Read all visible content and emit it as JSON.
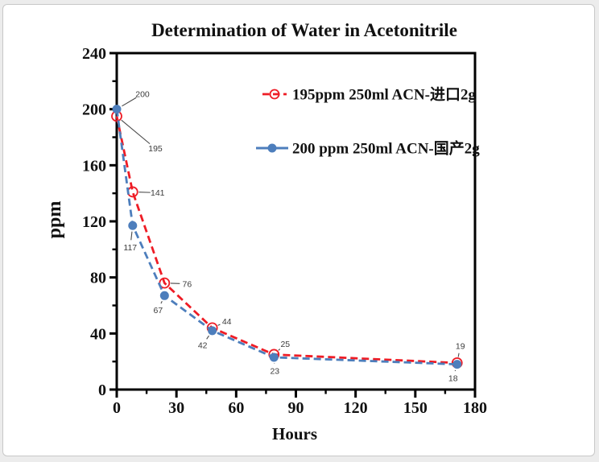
{
  "frame": {
    "background": "#ffffff",
    "border_color": "#c8c8c8"
  },
  "chart_data": {
    "type": "line",
    "title": "Determination of Water in Acetonitrile",
    "xlabel": "Hours",
    "ylabel": "ppm",
    "xlim": [
      0,
      180
    ],
    "ylim": [
      0,
      240
    ],
    "x_major_step": 30,
    "x_minor_step": 15,
    "y_major_step": 40,
    "y_minor_step": 20,
    "grid": false,
    "legend_position": "inside-top-right",
    "x": [
      0,
      8,
      24,
      48,
      79,
      171
    ],
    "series": [
      {
        "name": "195ppm  250ml ACN-进口2g",
        "color": "#ee1c25",
        "marker": "open-circle",
        "line_style": "dashed",
        "values": [
          195,
          141,
          76,
          44,
          25,
          19
        ]
      },
      {
        "name": "200 ppm 250ml ACN-国产2g",
        "color": "#4d7ebc",
        "marker": "filled-circle",
        "line_style": "dashed",
        "values": [
          200,
          117,
          67,
          42,
          23,
          18
        ]
      }
    ],
    "point_label_offsets": [
      [
        [
          48,
          40
        ],
        [
          31,
          1
        ],
        [
          28,
          1
        ],
        [
          18,
          -8
        ],
        [
          14,
          -13
        ],
        [
          4,
          -21
        ]
      ],
      [
        [
          32,
          -19
        ],
        [
          -3,
          27
        ],
        [
          -8,
          18
        ],
        [
          -12,
          18
        ],
        [
          1,
          17
        ],
        [
          -5,
          17
        ]
      ]
    ]
  }
}
